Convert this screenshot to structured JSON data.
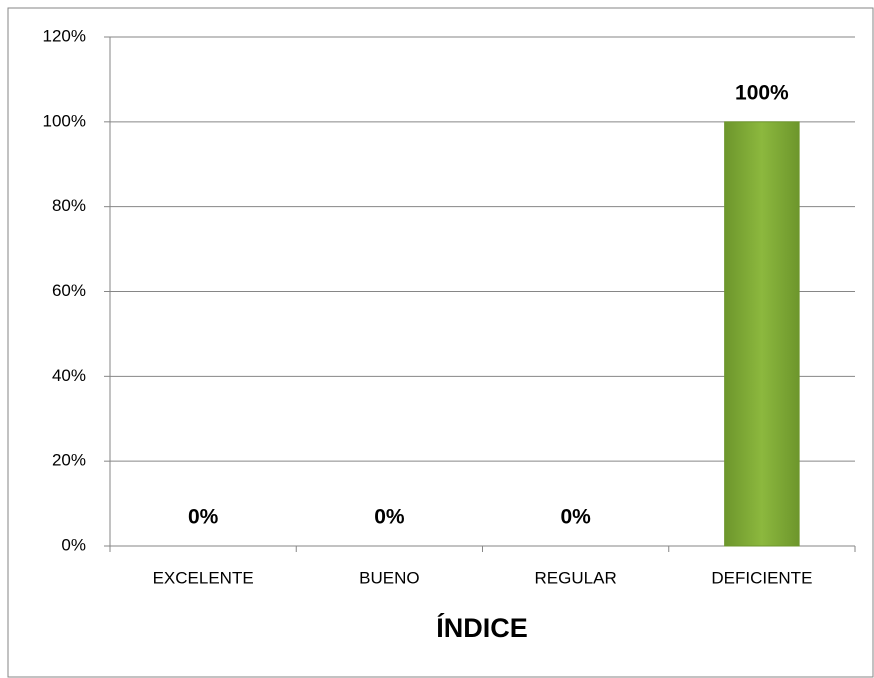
{
  "chart_data": {
    "type": "bar",
    "x_label": "ÍNDICE",
    "categories": [
      "EXCELENTE",
      "BUENO",
      "REGULAR",
      "DEFICIENTE"
    ],
    "values": [
      0,
      0,
      0,
      100
    ],
    "value_labels": [
      "0%",
      "0%",
      "0%",
      "100%"
    ],
    "color": "#8cb83e",
    "ylim": [
      0,
      120
    ],
    "yticks": [
      {
        "value": 0,
        "label": "0%"
      },
      {
        "value": 20,
        "label": "20%"
      },
      {
        "value": 40,
        "label": "40%"
      },
      {
        "value": 60,
        "label": "60%"
      },
      {
        "value": 80,
        "label": "80%"
      },
      {
        "value": 100,
        "label": "100%"
      },
      {
        "value": 120,
        "label": "120%"
      }
    ],
    "grid": true
  }
}
